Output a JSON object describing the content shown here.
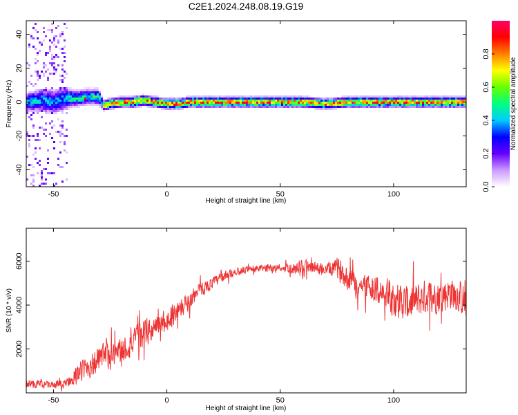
{
  "title": "C2E1.2024.248.08.19.G19",
  "chart_data": [
    {
      "type": "heatmap",
      "title": "C2E1.2024.248.08.19.G19",
      "xlabel": "Height of straight line (km)",
      "ylabel": "Frequency (Hz)",
      "xlim": [
        -62,
        132
      ],
      "ylim": [
        -50,
        48
      ],
      "xticks": [
        -50,
        0,
        50,
        100
      ],
      "yticks": [
        -40,
        -20,
        0,
        20,
        40
      ],
      "colorbar": {
        "label": "Normalized spectral amplitude",
        "range": [
          0,
          1
        ],
        "ticks": [
          "0.0",
          "0.2",
          "0.4",
          "0.6",
          "0.8"
        ],
        "colors": [
          "#ffffff",
          "#cc99ff",
          "#6600ff",
          "#0000ff",
          "#00ccff",
          "#00ff80",
          "#66ff00",
          "#ffff00",
          "#ff8000",
          "#ff0000",
          "#ff0066"
        ]
      },
      "ridge": {
        "x": [
          -62,
          -55,
          -50,
          -45,
          -40,
          -35,
          -30,
          -28,
          -25,
          -20,
          -15,
          -10,
          -5,
          0,
          5,
          10,
          20,
          30,
          40,
          50,
          60,
          70,
          80,
          90,
          100,
          110,
          120,
          132
        ],
        "center_hz": [
          0,
          1,
          0,
          2,
          2,
          3,
          3,
          -2,
          -1,
          0,
          0,
          1,
          0,
          -1,
          -1,
          0,
          0,
          0,
          0,
          0,
          0,
          -1,
          0,
          0,
          0,
          0,
          0,
          0
        ],
        "halfwidth_hz": [
          3,
          4,
          4,
          4,
          3,
          3,
          3,
          2,
          2,
          2,
          2,
          2,
          2,
          2,
          2,
          2,
          2,
          2,
          2,
          2,
          2,
          2,
          2,
          2,
          2,
          2,
          2,
          2
        ]
      }
    },
    {
      "type": "line",
      "xlabel": "Height of straight line (km)",
      "ylabel": "SNR (10 * v/v)",
      "xlim": [
        -62,
        132
      ],
      "ylim": [
        0,
        7500
      ],
      "xticks": [
        -50,
        0,
        50,
        100
      ],
      "yticks": [
        2000,
        4000,
        6000
      ],
      "color": "#ee3333",
      "x": [
        -62,
        -55,
        -50,
        -45,
        -40,
        -35,
        -30,
        -25,
        -20,
        -15,
        -10,
        -5,
        0,
        5,
        10,
        15,
        20,
        25,
        30,
        35,
        40,
        45,
        50,
        55,
        60,
        65,
        70,
        75,
        80,
        85,
        90,
        95,
        100,
        105,
        110,
        115,
        120,
        125,
        130,
        132
      ],
      "mean": [
        400,
        400,
        350,
        400,
        800,
        1200,
        1500,
        1700,
        1900,
        2300,
        2700,
        3000,
        3300,
        3800,
        4200,
        4700,
        5000,
        5300,
        5500,
        5600,
        5650,
        5700,
        5700,
        5650,
        5750,
        5700,
        5600,
        5700,
        5200,
        4800,
        4900,
        4500,
        4300,
        4100,
        4200,
        4400,
        4400,
        4600,
        4300,
        4000
      ],
      "spread": [
        300,
        300,
        250,
        300,
        600,
        900,
        1000,
        1000,
        1000,
        1000,
        1000,
        900,
        800,
        700,
        600,
        500,
        400,
        350,
        300,
        250,
        250,
        250,
        250,
        350,
        500,
        450,
        450,
        700,
        900,
        1000,
        1000,
        1100,
        1300,
        1300,
        1300,
        1200,
        1200,
        1200,
        1200,
        1200
      ]
    }
  ]
}
